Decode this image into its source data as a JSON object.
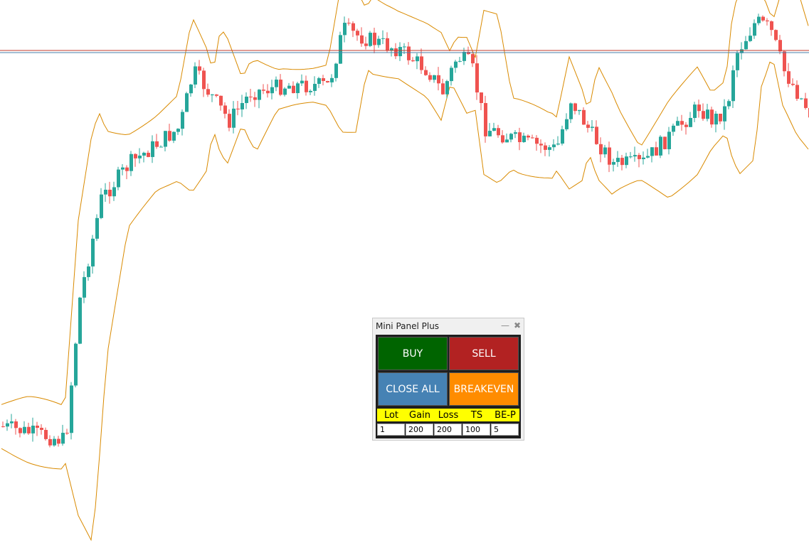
{
  "panel": {
    "title": "Mini Panel Plus",
    "buttons": [
      "BUY",
      "SELL",
      "CLOSE ALL",
      "BREAKEVEN"
    ],
    "fields": [
      {
        "label": "Lot",
        "value": 1
      },
      {
        "label": "Gain",
        "value": 200
      },
      {
        "label": "Loss",
        "value": 200
      },
      {
        "label": "TS",
        "value": 100
      },
      {
        "label": "BE-P",
        "value": 5
      }
    ]
  }
}
